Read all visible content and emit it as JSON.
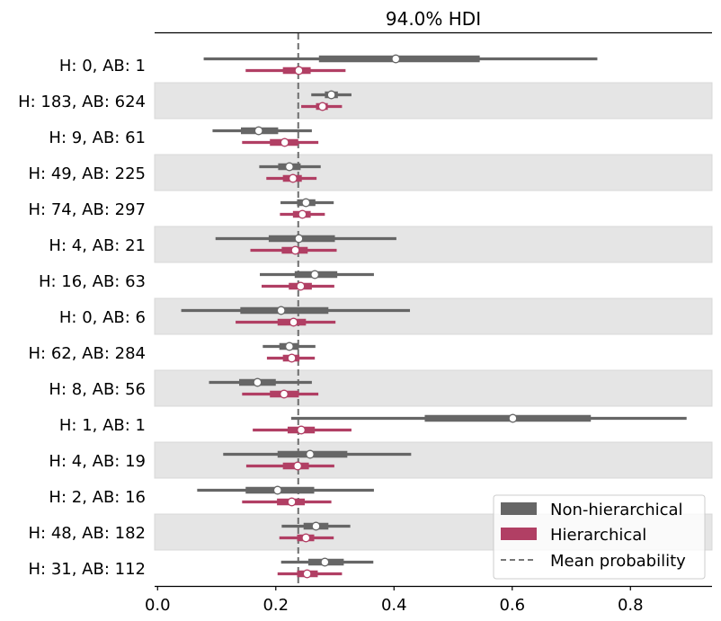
{
  "chart_data": {
    "type": "forest",
    "title": "94.0% HDI",
    "xlabel": "",
    "ylabel": "",
    "xlim": [
      -0.005,
      0.938
    ],
    "xticks": [
      0.0,
      0.2,
      0.4,
      0.6,
      0.8
    ],
    "xtick_labels": [
      "0.0",
      "0.2",
      "0.4",
      "0.6",
      "0.8"
    ],
    "reference_line": {
      "label": "Mean probability",
      "value": 0.238,
      "style": "dashed"
    },
    "legend": {
      "placement": "bottom-right",
      "entries": [
        {
          "label": "Non-hierarchical",
          "kind": "patch",
          "color": "#666666"
        },
        {
          "label": "Hierarchical",
          "kind": "patch",
          "color": "#b13f64"
        },
        {
          "label": "Mean probability",
          "kind": "dashed-line",
          "color": "#777777"
        }
      ]
    },
    "colors": {
      "non_hierarchical": "#666666",
      "hierarchical": "#b13f64",
      "band": "#e5e5e5",
      "band_edge": "#d8d8d8",
      "reference_line": "#6e6e6e"
    },
    "categories": [
      "H: 0, AB: 1",
      "H: 183, AB: 624",
      "H: 9, AB: 61",
      "H: 49, AB: 225",
      "H: 74, AB: 297",
      "H: 4, AB: 21",
      "H: 16, AB: 63",
      "H: 0, AB: 6",
      "H: 62, AB: 284",
      "H: 8, AB: 56",
      "H: 1, AB: 1",
      "H: 4, AB: 19",
      "H: 2, AB: 16",
      "H: 48, AB: 182",
      "H: 31, AB: 112"
    ],
    "series": [
      {
        "name": "Non-hierarchical",
        "color": "#666666",
        "hdi_low": [
          0.078,
          0.26,
          0.093,
          0.172,
          0.208,
          0.098,
          0.173,
          0.04,
          0.178,
          0.087,
          0.226,
          0.111,
          0.067,
          0.21,
          0.209
        ],
        "q25": [
          0.273,
          0.283,
          0.141,
          0.204,
          0.236,
          0.188,
          0.232,
          0.14,
          0.206,
          0.138,
          0.452,
          0.203,
          0.149,
          0.247,
          0.255
        ],
        "median": [
          0.403,
          0.294,
          0.171,
          0.223,
          0.251,
          0.239,
          0.266,
          0.209,
          0.223,
          0.169,
          0.601,
          0.258,
          0.203,
          0.268,
          0.283
        ],
        "q75": [
          0.545,
          0.305,
          0.204,
          0.242,
          0.267,
          0.3,
          0.304,
          0.289,
          0.239,
          0.2,
          0.733,
          0.321,
          0.265,
          0.289,
          0.315
        ],
        "hdi_high": [
          0.744,
          0.328,
          0.261,
          0.276,
          0.298,
          0.404,
          0.366,
          0.427,
          0.267,
          0.261,
          0.895,
          0.429,
          0.366,
          0.326,
          0.365
        ]
      },
      {
        "name": "Hierarchical",
        "color": "#b13f64",
        "hdi_low": [
          0.149,
          0.243,
          0.143,
          0.184,
          0.207,
          0.157,
          0.176,
          0.132,
          0.185,
          0.143,
          0.161,
          0.15,
          0.143,
          0.206,
          0.203
        ],
        "q25": [
          0.212,
          0.268,
          0.19,
          0.212,
          0.229,
          0.21,
          0.222,
          0.203,
          0.212,
          0.19,
          0.22,
          0.212,
          0.202,
          0.236,
          0.236
        ],
        "median": [
          0.239,
          0.279,
          0.215,
          0.229,
          0.245,
          0.233,
          0.242,
          0.23,
          0.227,
          0.214,
          0.243,
          0.237,
          0.227,
          0.251,
          0.253
        ],
        "q75": [
          0.259,
          0.288,
          0.238,
          0.244,
          0.259,
          0.254,
          0.261,
          0.251,
          0.24,
          0.239,
          0.266,
          0.256,
          0.249,
          0.265,
          0.271
        ],
        "hdi_high": [
          0.318,
          0.312,
          0.272,
          0.269,
          0.283,
          0.303,
          0.299,
          0.301,
          0.266,
          0.272,
          0.328,
          0.299,
          0.294,
          0.298,
          0.312
        ]
      }
    ]
  }
}
